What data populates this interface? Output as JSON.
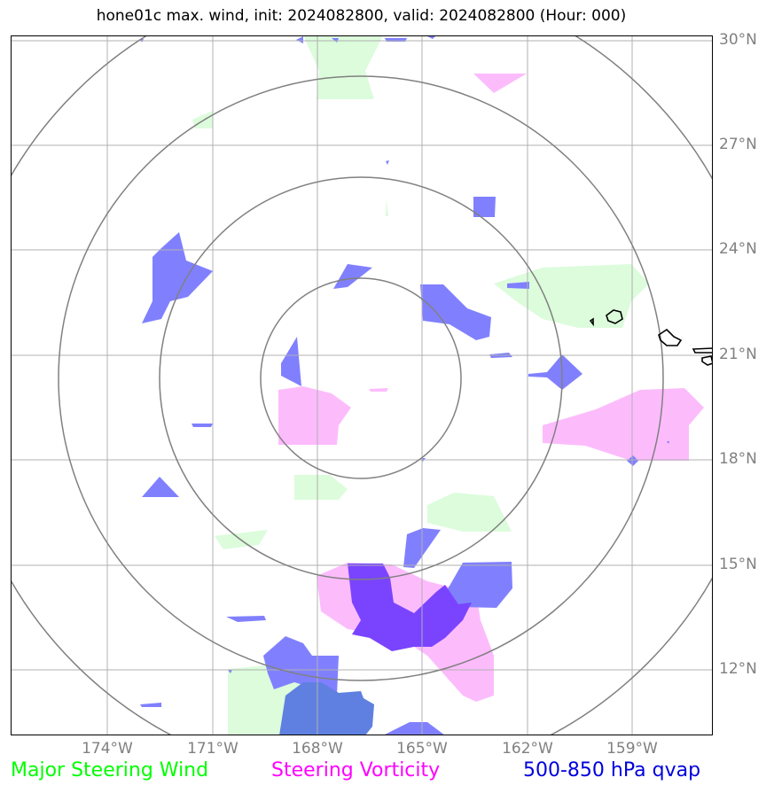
{
  "title": "hone01c max. wind, init: 2024082800, valid: 2024082800 (Hour: 000)",
  "lat_labels": [
    "30°N",
    "27°N",
    "24°N",
    "21°N",
    "18°N",
    "15°N",
    "12°N"
  ],
  "lon_labels": [
    "174°W",
    "171°W",
    "168°W",
    "165°W",
    "162°W",
    "159°W"
  ],
  "legend": {
    "steering_wind": {
      "label": "Major Steering Wind",
      "color": "#00ff00"
    },
    "vorticity": {
      "label": "Steering Vorticity",
      "color": "#ff00ff"
    },
    "qvap": {
      "label": "500-850 hPa qvap",
      "color": "#0000dd"
    }
  },
  "colors": {
    "wind_fill": "#dcfcdc",
    "vort_fill": "#fcbcfc",
    "qvap_fill": "#8080ff",
    "overlap_fill": "#7a44ff",
    "overlap_green_blue": "#5f80e0",
    "grid": "#b0b0b0",
    "rings": "#808080"
  }
}
